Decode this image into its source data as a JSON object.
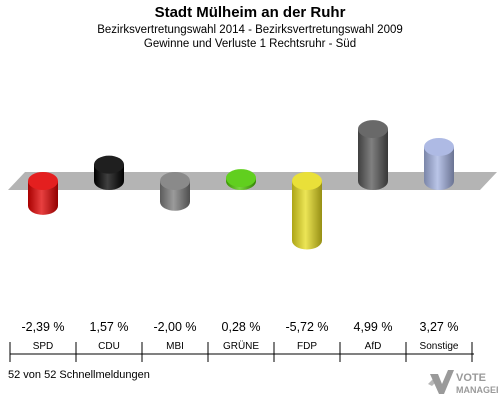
{
  "title": "Stadt Mülheim an der Ruhr",
  "subtitle1": "Bezirksvertretungswahl 2014 - Bezirksvertretungswahl 2009",
  "subtitle2": "Gewinne und Verluste 1 Rechtsruhr - Süd",
  "footer": "52 von 52 Schnellmeldungen",
  "logo_text": "VOTE MANAGER",
  "chart_data": {
    "type": "bar",
    "categories": [
      "SPD",
      "CDU",
      "MBI",
      "GRÜNE",
      "FDP",
      "AfD",
      "Sonstige"
    ],
    "values": [
      -2.39,
      1.57,
      -2.0,
      0.28,
      -5.72,
      4.99,
      3.27
    ],
    "value_labels": [
      "-2,39 %",
      "1,57 %",
      "-2,00 %",
      "0,28 %",
      "-5,72 %",
      "4,99 %",
      "3,27 %"
    ],
    "colors": [
      "#e00000",
      "#000000",
      "#7a7a7a",
      "#4cc800",
      "#e6dc1e",
      "#555555",
      "#a3b1e0"
    ],
    "ylim": [
      -6,
      6
    ]
  }
}
